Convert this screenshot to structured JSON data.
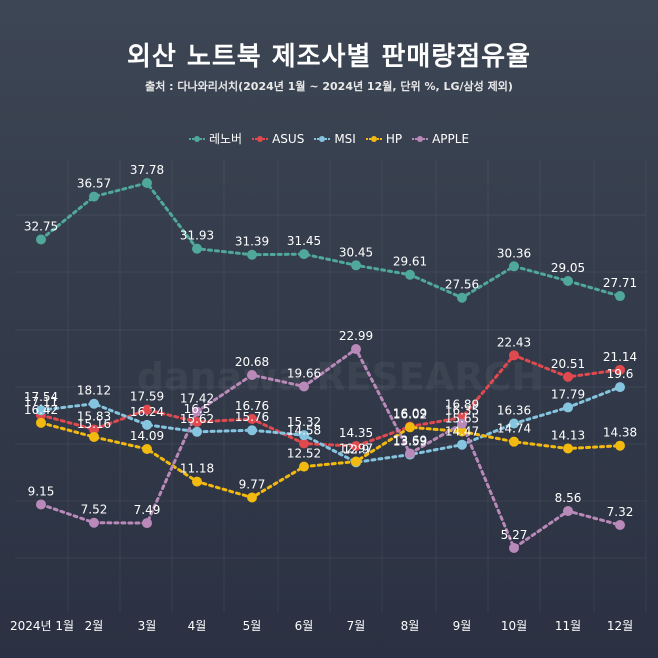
{
  "header": {
    "title": "외산 노트북 제조사별 판매량점유율",
    "subtitle": "출처 : 다나와리서치(2024년 1월 ~ 2024년 12월, 단위 %, LG/삼성 제외)"
  },
  "chart_data": {
    "type": "line",
    "title": "외산 노트북 제조사별 판매량점유율",
    "subtitle": "출처 : 다나와리서치(2024년 1월 ~ 2024년 12월, 단위 %, LG/삼성 제외)",
    "xlabel": "",
    "ylabel": "",
    "ylim": [
      0,
      40
    ],
    "grid": true,
    "legend_position": "top-center",
    "categories": [
      "2024년 1월",
      "2월",
      "3월",
      "4월",
      "5월",
      "6월",
      "7월",
      "8월",
      "9월",
      "10월",
      "11월",
      "12월"
    ],
    "series": [
      {
        "name": "레노버",
        "color": "#4fa89a",
        "values": [
          32.75,
          36.57,
          37.78,
          31.93,
          31.39,
          31.45,
          30.45,
          29.61,
          27.56,
          30.36,
          29.05,
          27.71
        ]
      },
      {
        "name": "ASUS",
        "color": "#e04a4f",
        "values": [
          17.11,
          15.83,
          17.59,
          16.5,
          16.76,
          14.58,
          14.35,
          16.09,
          16.89,
          22.43,
          20.51,
          21.14
        ]
      },
      {
        "name": "MSI",
        "color": "#86c5e0",
        "values": [
          17.54,
          18.12,
          16.24,
          15.62,
          15.76,
          15.32,
          12.9,
          13.59,
          14.47,
          16.36,
          17.79,
          19.6
        ]
      },
      {
        "name": "HP",
        "color": "#f2b90f",
        "values": [
          16.42,
          15.16,
          14.09,
          11.18,
          9.77,
          12.52,
          12.97,
          16.02,
          15.65,
          14.74,
          14.13,
          14.38
        ]
      },
      {
        "name": "APPLE",
        "color": "#b98ab9",
        "values": [
          9.15,
          7.52,
          7.49,
          17.42,
          20.68,
          19.66,
          22.99,
          13.69,
          16.35,
          5.27,
          8.56,
          7.32
        ]
      }
    ]
  }
}
